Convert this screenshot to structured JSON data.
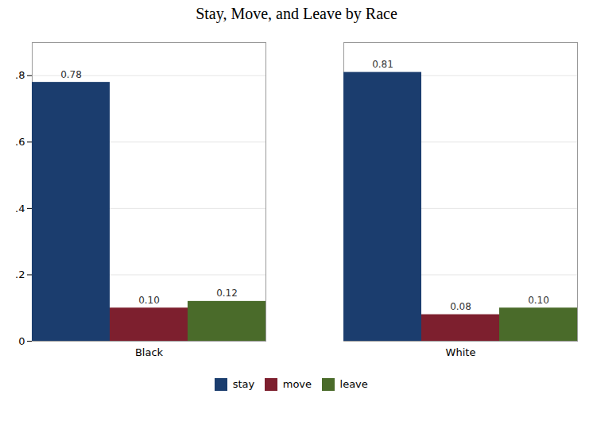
{
  "chart_data": {
    "type": "bar",
    "title": "Stay, Move, and Leave by Race",
    "categories": [
      "Black",
      "White"
    ],
    "series": [
      {
        "name": "stay",
        "color": "#1b3d6e",
        "values": [
          0.78,
          0.81
        ],
        "value_labels": [
          "0.78",
          "0.81"
        ]
      },
      {
        "name": "move",
        "color": "#7d1f2e",
        "values": [
          0.1,
          0.08
        ],
        "value_labels": [
          "0.10",
          "0.08"
        ]
      },
      {
        "name": "leave",
        "color": "#4a6b2a",
        "values": [
          0.12,
          0.1
        ],
        "value_labels": [
          "0.12",
          "0.10"
        ]
      }
    ],
    "ylim": [
      0,
      0.9
    ],
    "yticks": [
      0,
      {
        "value": 0.2,
        "label": ".2"
      },
      {
        "value": 0.4,
        "label": ".4"
      },
      {
        "value": 0.6,
        "label": ".6"
      },
      {
        "value": 0.8,
        "label": ".8"
      }
    ],
    "grid": true,
    "data_labels": true,
    "legend": "bottom"
  }
}
